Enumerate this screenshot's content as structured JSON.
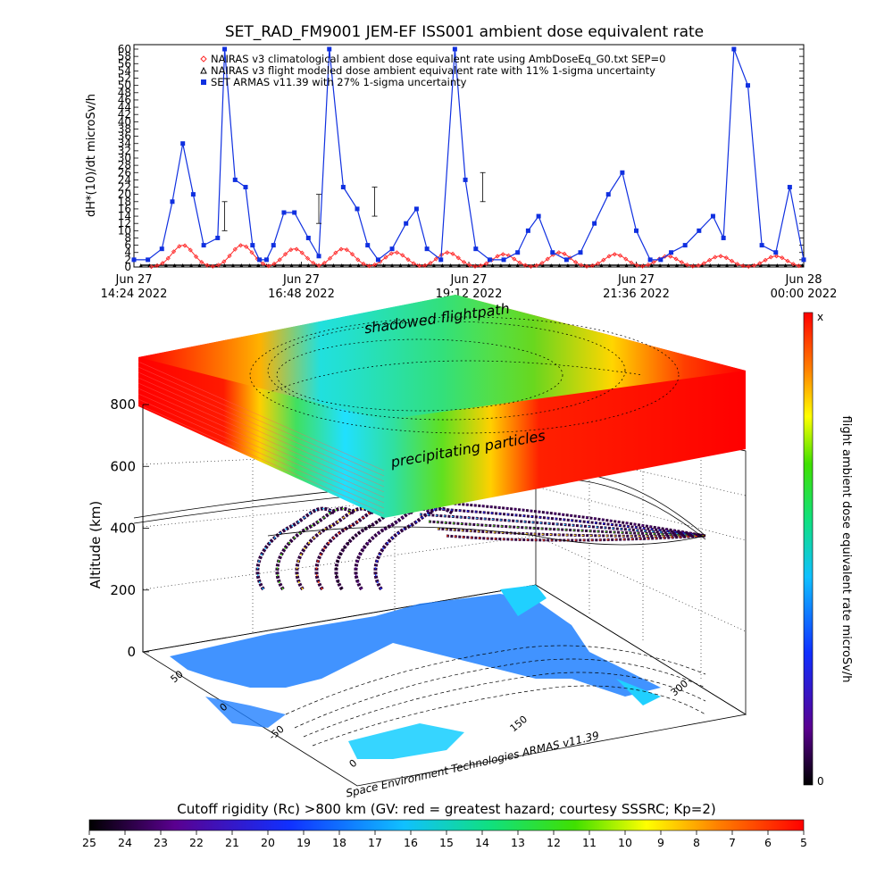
{
  "title": "SET_RAD_FM9001   JEM-EF ISS001 ambient dose equivalent rate",
  "colors": {
    "background": "#ffffff",
    "nairas_clim": "#ff2a2a",
    "nairas_flight": "#000000",
    "armas": "#1030e0",
    "map_land": "#2080ff",
    "map_coast": "#20d0ff"
  },
  "top_chart": {
    "ylabel": "dH*(10)/dt microSv/h",
    "y_ticks": [
      "0",
      "2",
      "4",
      "6",
      "8",
      "10",
      "12",
      "14",
      "16",
      "18",
      "20",
      "22",
      "24",
      "26",
      "28",
      "30",
      "32",
      "34",
      "36",
      "38",
      "40",
      "42",
      "44",
      "46",
      "48",
      "50",
      "52",
      "54",
      "56",
      "58",
      "60"
    ],
    "ylim": [
      0,
      60
    ],
    "x_ticks": [
      {
        "line1": "Jun 27",
        "line2": "14:24 2022"
      },
      {
        "line1": "Jun 27",
        "line2": "16:48 2022"
      },
      {
        "line1": "Jun 27",
        "line2": "19:12 2022"
      },
      {
        "line1": "Jun 27",
        "line2": "21:36 2022"
      },
      {
        "line1": "Jun 28",
        "line2": "00:00 2022"
      }
    ],
    "legend": [
      {
        "symbol": "diamond",
        "text": "NAIRAS v3 climatological ambient dose equivalent rate using AmbDoseEq_G0.txt SEP=0"
      },
      {
        "symbol": "triangle",
        "text": "NAIRAS v3 flight modeled dose ambient equivalent rate with 11% 1-sigma uncertainty"
      },
      {
        "symbol": "square",
        "text": "SET ARMAS v11.39 with 27% 1-sigma uncertainty"
      }
    ]
  },
  "chart_data": [
    {
      "type": "line",
      "title": "SET_RAD_FM9001   JEM-EF ISS001 ambient dose equivalent rate",
      "xlabel": "",
      "ylabel": "dH*(10)/dt microSv/h",
      "x_range": [
        "Jun 27 14:24 2022",
        "Jun 28 00:00 2022"
      ],
      "ylim": [
        0,
        60
      ],
      "legend_position": "top-left",
      "series": [
        {
          "name": "NAIRAS v3 climatological ambient dose equivalent rate using AmbDoseEq_G0.txt SEP=0",
          "peaks_hours_after_start": [
            0.7,
            1.55,
            2.3,
            3.0,
            3.75,
            4.5,
            5.3,
            6.1,
            6.9,
            7.65,
            8.4,
            9.2
          ],
          "peak_values": [
            6,
            6,
            5,
            5,
            4,
            4,
            3.5,
            4,
            3.5,
            3,
            3,
            3
          ],
          "baseline": 0
        },
        {
          "name": "NAIRAS v3 flight modeled dose ambient equivalent rate with 11% 1-sigma uncertainty",
          "constant_value": 0.5
        },
        {
          "name": "SET ARMAS v11.39 with 27% 1-sigma uncertainty",
          "x_hours_after_start": [
            0.0,
            0.2,
            0.4,
            0.55,
            0.7,
            0.85,
            1.0,
            1.2,
            1.3,
            1.45,
            1.6,
            1.7,
            1.8,
            1.9,
            2.0,
            2.15,
            2.3,
            2.5,
            2.65,
            2.8,
            3.0,
            3.2,
            3.35,
            3.5,
            3.7,
            3.9,
            4.05,
            4.2,
            4.4,
            4.6,
            4.75,
            4.9,
            5.1,
            5.3,
            5.5,
            5.65,
            5.8,
            6.0,
            6.2,
            6.4,
            6.6,
            6.8,
            7.0,
            7.2,
            7.4,
            7.55,
            7.7,
            7.9,
            8.1,
            8.3,
            8.45,
            8.6,
            8.8,
            9.0,
            9.2,
            9.4,
            9.6
          ],
          "values": [
            2,
            2,
            5,
            18,
            34,
            20,
            6,
            8,
            60,
            24,
            22,
            6,
            2,
            2,
            6,
            15,
            15,
            8,
            3,
            60,
            22,
            16,
            6,
            2,
            5,
            12,
            16,
            5,
            2,
            60,
            24,
            5,
            2,
            2,
            4,
            10,
            14,
            4,
            2,
            4,
            12,
            20,
            26,
            10,
            2,
            2,
            4,
            6,
            10,
            14,
            8,
            60,
            50,
            6,
            4,
            22,
            2
          ]
        }
      ]
    },
    {
      "type": "heatmap",
      "title": "Cutoff rigidity (Rc) >800 km (GV: red = greatest hazard; courtesy SSSRC; Kp=2)",
      "zlabel": "Altitude (km)",
      "z_ticks": [
        0,
        200,
        400,
        600,
        800
      ],
      "colorbar_label": "flight ambient dose equivalent rate microSv/h",
      "colorbar_ticks": [
        "x",
        "0"
      ],
      "rigidity_ticks": [
        25,
        24,
        23,
        22,
        21,
        20,
        19,
        18,
        17,
        16,
        15,
        14,
        13,
        12,
        11,
        10,
        9,
        8,
        7,
        6,
        5
      ]
    }
  ],
  "plot3d": {
    "z_label": "Altitude (km)",
    "z_ticks": [
      "0",
      "200",
      "400",
      "600",
      "800"
    ],
    "lat_ticks": [
      "50",
      "0",
      "-50"
    ],
    "lon_ticks": [
      "0",
      "150",
      "300"
    ],
    "annotation_top": "shadowed flightpath",
    "annotation_middle": "precipitating particles",
    "credit": "Space Environment Technologies ARMAS v11.39"
  },
  "colorbar_right": {
    "label": "flight ambient dose equivalent rate microSv/h",
    "top_tick": "x",
    "bottom_tick": "0"
  },
  "colorbar_bottom": {
    "title": "Cutoff rigidity (Rc) >800 km (GV: red = greatest hazard; courtesy SSSRC; Kp=2)",
    "ticks": [
      "25",
      "24",
      "23",
      "22",
      "21",
      "20",
      "19",
      "18",
      "17",
      "16",
      "15",
      "14",
      "13",
      "12",
      "11",
      "10",
      "9",
      "8",
      "7",
      "6",
      "5"
    ]
  }
}
